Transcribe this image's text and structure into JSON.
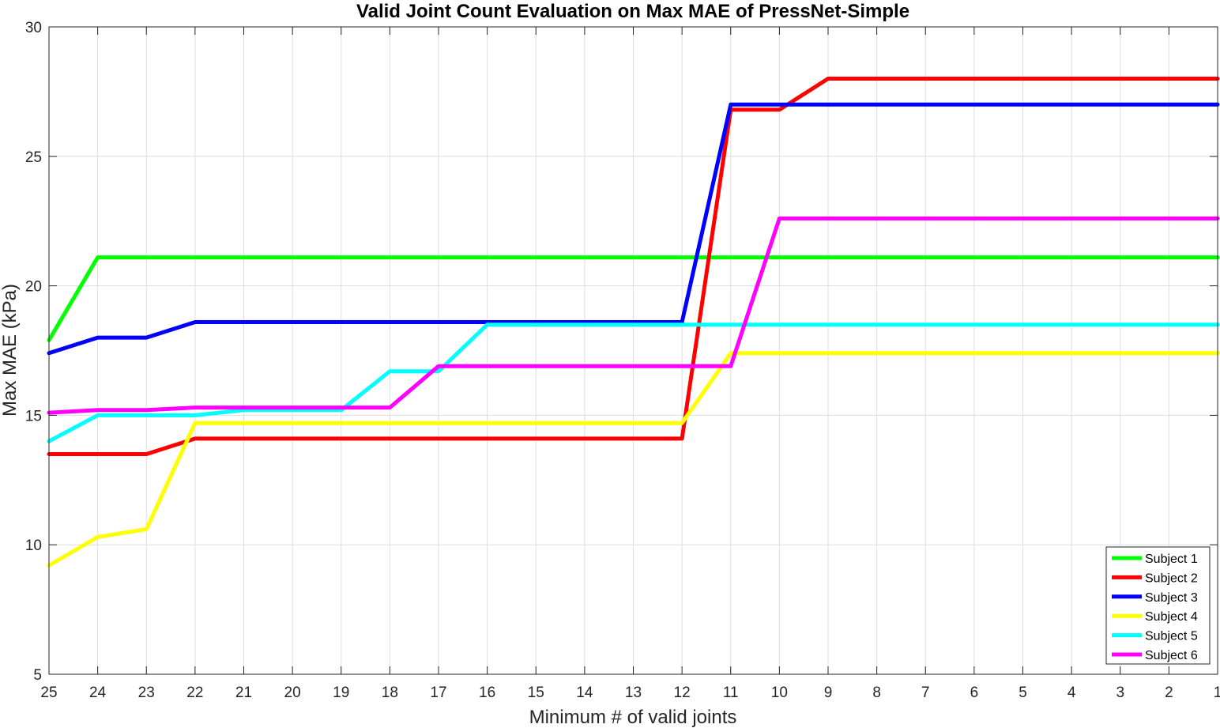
{
  "chart_data": {
    "type": "line",
    "title": "Valid Joint Count Evaluation on Max MAE of PressNet-Simple",
    "xlabel": "Minimum # of valid joints",
    "ylabel": "Max MAE (kPa)",
    "x": [
      25,
      24,
      23,
      22,
      21,
      20,
      19,
      18,
      17,
      16,
      15,
      14,
      13,
      12,
      11,
      10,
      9,
      8,
      7,
      6,
      5,
      4,
      3,
      2,
      1
    ],
    "x_reversed": true,
    "xlim": [
      25,
      1
    ],
    "ylim": [
      5,
      30
    ],
    "yticks": [
      5,
      10,
      15,
      20,
      25,
      30
    ],
    "grid": true,
    "legend_position": "bottom-right",
    "series": [
      {
        "name": "Subject 1",
        "color": "#00ff00",
        "values": [
          17.9,
          21.1,
          21.1,
          21.1,
          21.1,
          21.1,
          21.1,
          21.1,
          21.1,
          21.1,
          21.1,
          21.1,
          21.1,
          21.1,
          21.1,
          21.1,
          21.1,
          21.1,
          21.1,
          21.1,
          21.1,
          21.1,
          21.1,
          21.1,
          21.1
        ]
      },
      {
        "name": "Subject 2",
        "color": "#ff0000",
        "values": [
          13.5,
          13.5,
          13.5,
          14.1,
          14.1,
          14.1,
          14.1,
          14.1,
          14.1,
          14.1,
          14.1,
          14.1,
          14.1,
          14.1,
          26.8,
          26.8,
          28.0,
          28.0,
          28.0,
          28.0,
          28.0,
          28.0,
          28.0,
          28.0,
          28.0
        ]
      },
      {
        "name": "Subject 3",
        "color": "#0000ff",
        "values": [
          17.4,
          18.0,
          18.0,
          18.6,
          18.6,
          18.6,
          18.6,
          18.6,
          18.6,
          18.6,
          18.6,
          18.6,
          18.6,
          18.6,
          27.0,
          27.0,
          27.0,
          27.0,
          27.0,
          27.0,
          27.0,
          27.0,
          27.0,
          27.0,
          27.0
        ]
      },
      {
        "name": "Subject 4",
        "color": "#ffff00",
        "values": [
          9.2,
          10.3,
          10.6,
          14.7,
          14.7,
          14.7,
          14.7,
          14.7,
          14.7,
          14.7,
          14.7,
          14.7,
          14.7,
          14.7,
          17.4,
          17.4,
          17.4,
          17.4,
          17.4,
          17.4,
          17.4,
          17.4,
          17.4,
          17.4,
          17.4
        ]
      },
      {
        "name": "Subject 5",
        "color": "#00ffff",
        "values": [
          14.0,
          15.0,
          15.0,
          15.0,
          15.2,
          15.2,
          15.2,
          16.7,
          16.7,
          18.5,
          18.5,
          18.5,
          18.5,
          18.5,
          18.5,
          18.5,
          18.5,
          18.5,
          18.5,
          18.5,
          18.5,
          18.5,
          18.5,
          18.5,
          18.5
        ]
      },
      {
        "name": "Subject 6",
        "color": "#ff00ff",
        "values": [
          15.1,
          15.2,
          15.2,
          15.3,
          15.3,
          15.3,
          15.3,
          15.3,
          16.9,
          16.9,
          16.9,
          16.9,
          16.9,
          16.9,
          16.9,
          22.6,
          22.6,
          22.6,
          22.6,
          22.6,
          22.6,
          22.6,
          22.6,
          22.6,
          22.6
        ]
      }
    ]
  }
}
